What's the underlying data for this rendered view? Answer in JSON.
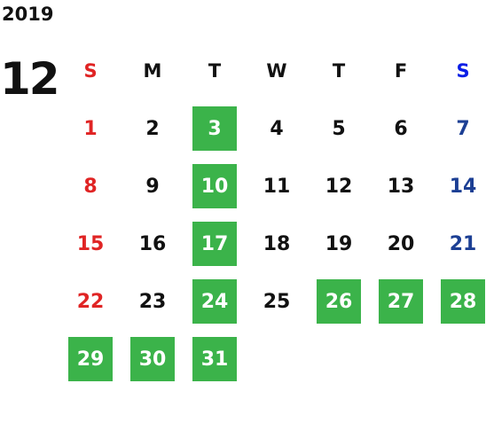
{
  "year": "2019",
  "month": "12",
  "weekdays": [
    "S",
    "M",
    "T",
    "W",
    "T",
    "F",
    "S"
  ],
  "weeks": [
    [
      {
        "day": 1,
        "marked": false
      },
      {
        "day": 2,
        "marked": false
      },
      {
        "day": 3,
        "marked": true
      },
      {
        "day": 4,
        "marked": false
      },
      {
        "day": 5,
        "marked": false
      },
      {
        "day": 6,
        "marked": false
      },
      {
        "day": 7,
        "marked": false
      }
    ],
    [
      {
        "day": 8,
        "marked": false
      },
      {
        "day": 9,
        "marked": false
      },
      {
        "day": 10,
        "marked": true
      },
      {
        "day": 11,
        "marked": false
      },
      {
        "day": 12,
        "marked": false
      },
      {
        "day": 13,
        "marked": false
      },
      {
        "day": 14,
        "marked": false
      }
    ],
    [
      {
        "day": 15,
        "marked": false
      },
      {
        "day": 16,
        "marked": false
      },
      {
        "day": 17,
        "marked": true
      },
      {
        "day": 18,
        "marked": false
      },
      {
        "day": 19,
        "marked": false
      },
      {
        "day": 20,
        "marked": false
      },
      {
        "day": 21,
        "marked": false
      }
    ],
    [
      {
        "day": 22,
        "marked": false
      },
      {
        "day": 23,
        "marked": false
      },
      {
        "day": 24,
        "marked": true
      },
      {
        "day": 25,
        "marked": false
      },
      {
        "day": 26,
        "marked": true
      },
      {
        "day": 27,
        "marked": true
      },
      {
        "day": 28,
        "marked": true
      }
    ],
    [
      {
        "day": 29,
        "marked": true
      },
      {
        "day": 30,
        "marked": true
      },
      {
        "day": 31,
        "marked": true
      }
    ]
  ]
}
